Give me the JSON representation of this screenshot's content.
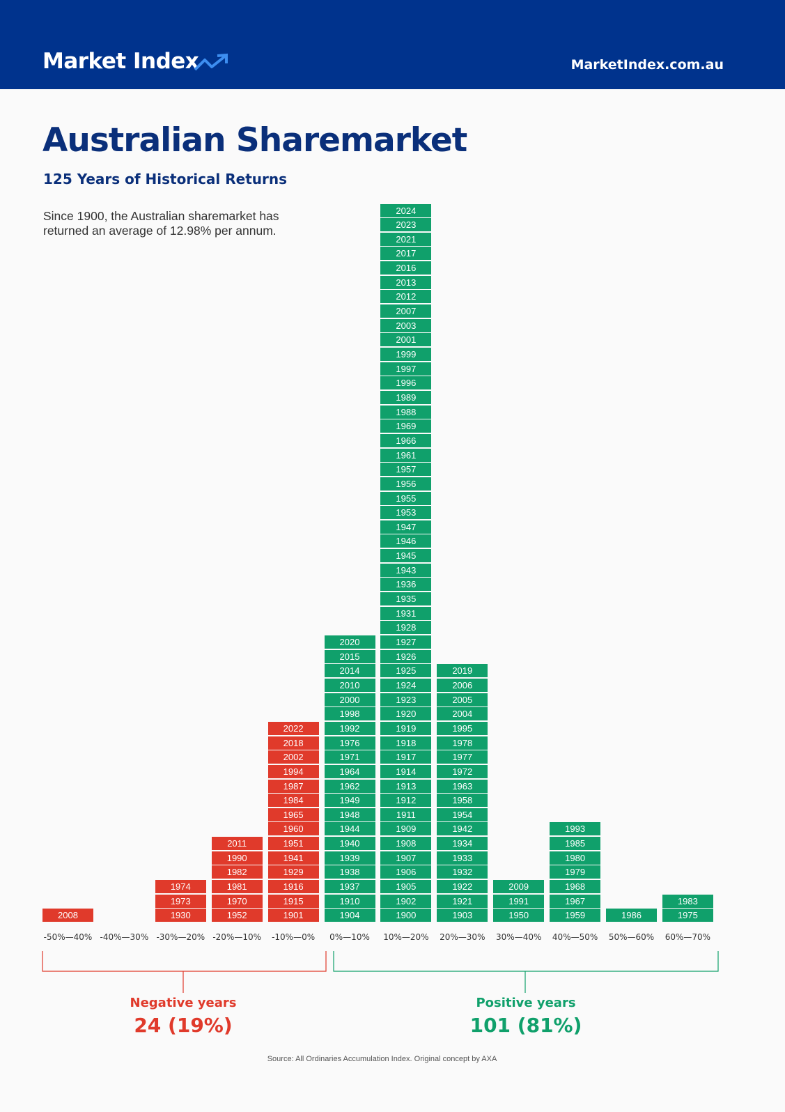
{
  "header": {
    "logo": "Market Index",
    "site": "MarketIndex.com.au"
  },
  "title": "Australian Sharemarket",
  "subtitle": "125 Years of Historical Returns",
  "description": [
    "Since 1900, the Australian sharemarket has",
    "returned an average of 12.98% per annum."
  ],
  "bins": [
    {
      "label": "-50%—40%",
      "color": "#e03a2b",
      "years": [
        "2008"
      ]
    },
    {
      "label": "-40%—30%",
      "color": "#e03a2b",
      "years": []
    },
    {
      "label": "-30%—20%",
      "color": "#e03a2b",
      "years": [
        "1974",
        "1973",
        "1930"
      ]
    },
    {
      "label": "-20%—10%",
      "color": "#e03a2b",
      "years": [
        "2011",
        "1990",
        "1982",
        "1981",
        "1970",
        "1952"
      ]
    },
    {
      "label": "-10%—0%",
      "color": "#e03a2b",
      "years": [
        "2022",
        "2018",
        "2002",
        "1994",
        "1987",
        "1984",
        "1965",
        "1960",
        "1951",
        "1941",
        "1929",
        "1916",
        "1915",
        "1901"
      ]
    },
    {
      "label": "0%—10%",
      "color": "#10a06b",
      "years": [
        "2020",
        "2015",
        "2014",
        "2010",
        "2000",
        "1998",
        "1992",
        "1976",
        "1971",
        "1964",
        "1962",
        "1949",
        "1948",
        "1944",
        "1940",
        "1939",
        "1938",
        "1937",
        "1910",
        "1904"
      ]
    },
    {
      "label": "10%—20%",
      "color": "#10a06b",
      "years": [
        "2024",
        "2023",
        "2021",
        "2017",
        "2016",
        "2013",
        "2012",
        "2007",
        "2003",
        "2001",
        "1999",
        "1997",
        "1996",
        "1989",
        "1988",
        "1969",
        "1966",
        "1961",
        "1957",
        "1956",
        "1955",
        "1953",
        "1947",
        "1946",
        "1945",
        "1943",
        "1936",
        "1935",
        "1931",
        "1928",
        "1927",
        "1926",
        "1925",
        "1924",
        "1923",
        "1920",
        "1919",
        "1918",
        "1917",
        "1914",
        "1913",
        "1912",
        "1911",
        "1909",
        "1908",
        "1907",
        "1906",
        "1905",
        "1902",
        "1900"
      ]
    },
    {
      "label": "20%—30%",
      "color": "#10a06b",
      "years": [
        "2019",
        "2006",
        "2005",
        "2004",
        "1995",
        "1978",
        "1977",
        "1972",
        "1963",
        "1958",
        "1954",
        "1942",
        "1934",
        "1933",
        "1932",
        "1922",
        "1921",
        "1903"
      ]
    },
    {
      "label": "30%—40%",
      "color": "#10a06b",
      "years": [
        "2009",
        "1991",
        "1950"
      ]
    },
    {
      "label": "40%—50%",
      "color": "#10a06b",
      "years": [
        "1993",
        "1985",
        "1980",
        "1979",
        "1968",
        "1967",
        "1959"
      ]
    },
    {
      "label": "50%—60%",
      "color": "#10a06b",
      "years": [
        "1986"
      ]
    },
    {
      "label": "60%—70%",
      "color": "#10a06b",
      "years": [
        "1983",
        "1975"
      ]
    }
  ],
  "summary": {
    "negative": {
      "label": "Negative years",
      "value": "24 (19%)",
      "color": "#e03a2b"
    },
    "positive": {
      "label": "Positive years",
      "value": "101 (81%)",
      "color": "#10a06b"
    }
  },
  "source": "Source: All Ordinaries Accumulation Index. Original concept by AXA"
}
